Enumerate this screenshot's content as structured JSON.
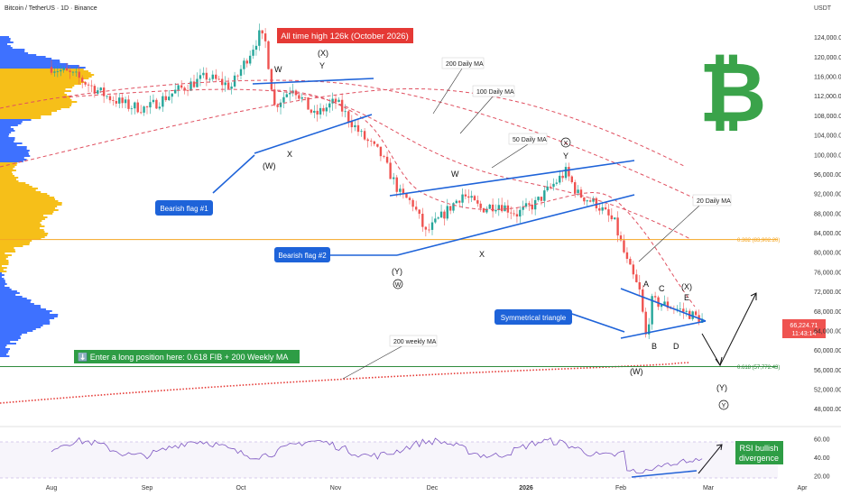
{
  "header": {
    "symbol_line": "Bitcoin / TetherUS · 1D · Binance",
    "currency": "USDT"
  },
  "chart_data": {
    "type": "candlestick",
    "y_axis": {
      "ticks": [
        "124,000.00",
        "120,000.00",
        "116,000.00",
        "112,000.00",
        "108,000.00",
        "104,000.00",
        "100,000.00",
        "96,000.00",
        "92,000.00",
        "88,000.00",
        "84,000.00",
        "80,000.00",
        "76,000.00",
        "72,000.00",
        "68,000.00",
        "64,000.00",
        "60,000.00",
        "56,000.00",
        "52,000.00",
        "48,000.00"
      ],
      "tick_values": [
        124000,
        120000,
        116000,
        112000,
        108000,
        104000,
        100000,
        96000,
        92000,
        88000,
        84000,
        80000,
        76000,
        72000,
        68000,
        64000,
        60000,
        56000,
        52000,
        48000
      ],
      "range": [
        45000,
        128000
      ]
    },
    "x_axis": {
      "labels": [
        "Aug",
        "Sep",
        "Oct",
        "Nov",
        "Dec",
        "2026",
        "Feb",
        "Mar",
        "Apr"
      ],
      "label_days": [
        0,
        31,
        61,
        92,
        122,
        153,
        184,
        212,
        243
      ]
    },
    "price_badge": {
      "price": "66,224.71",
      "countdown": "11:43:14"
    },
    "title_banner": "All time high 126k (October 2026)",
    "moving_average_labels": [
      "200 Daily MA",
      "100 Daily MA",
      "50 Daily MA",
      "20 Daily MA",
      "200 weekly MA"
    ],
    "fib_labels": [
      "0.382 (83,902.20)",
      "0.618 (57,772.43)"
    ],
    "fib_levels": [
      83902.2,
      57772.43
    ],
    "flag_labels": [
      "Bearish flag #1",
      "Bearish flag #2",
      "Symmetrical triangle"
    ],
    "long_position_label": "⬇️ Enter a long position here: 0.618 FIB + 200 Weekly MA",
    "wave_labels": {
      "W": "W",
      "X": "X",
      "Y": "Y",
      "A": "A",
      "B": "B",
      "C": "C",
      "D": "D",
      "E": "E",
      "paren_w": "(W)",
      "paren_x": "(X)",
      "paren_y": "(Y)",
      "circled_w": "W",
      "circled_x": "X",
      "circled_y": "Y"
    },
    "rsi": {
      "ticks": [
        "60.00",
        "40.00",
        "20.00"
      ],
      "tick_values": [
        60,
        40,
        20
      ],
      "range": [
        10,
        70
      ]
    },
    "rsi_label_lines": [
      "RSI bullish",
      "divergence"
    ],
    "candles": []
  },
  "colors": {
    "up": "#26a69a",
    "down": "#ef5350",
    "ma_dash": "#e05060",
    "weekly_ma": "#e53935",
    "trend": "#1e63d9",
    "fib": "#f5a623",
    "fib618": "#2e8b3d",
    "rsi": "#7e57c2",
    "volume_profile_a": "#f5b800",
    "volume_profile_b": "#2962ff",
    "bitcoin": "#3aa34a",
    "long_bg": "#2e9d45",
    "ath_bg": "#e53935"
  }
}
